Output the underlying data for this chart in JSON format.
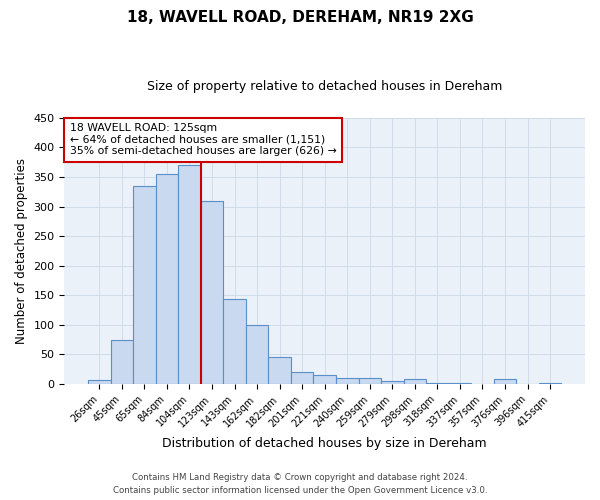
{
  "title": "18, WAVELL ROAD, DEREHAM, NR19 2XG",
  "subtitle": "Size of property relative to detached houses in Dereham",
  "xlabel": "Distribution of detached houses by size in Dereham",
  "ylabel": "Number of detached properties",
  "bar_labels": [
    "26sqm",
    "45sqm",
    "65sqm",
    "84sqm",
    "104sqm",
    "123sqm",
    "143sqm",
    "162sqm",
    "182sqm",
    "201sqm",
    "221sqm",
    "240sqm",
    "259sqm",
    "279sqm",
    "298sqm",
    "318sqm",
    "337sqm",
    "357sqm",
    "376sqm",
    "396sqm",
    "415sqm"
  ],
  "bar_values": [
    7,
    75,
    335,
    355,
    370,
    310,
    143,
    99,
    46,
    20,
    15,
    10,
    10,
    5,
    8,
    2,
    2,
    0,
    9,
    0,
    2
  ],
  "bar_color": "#c9d9f0",
  "bar_edge_color": "#5b8fc9",
  "vline_color": "#cc0000",
  "vline_index": 4.5,
  "annotation_title": "18 WAVELL ROAD: 125sqm",
  "annotation_line1": "← 64% of detached houses are smaller (1,151)",
  "annotation_line2": "35% of semi-detached houses are larger (626) →",
  "annotation_box_color": "#ffffff",
  "annotation_box_edge": "#cc0000",
  "ylim": [
    0,
    450
  ],
  "yticks": [
    0,
    50,
    100,
    150,
    200,
    250,
    300,
    350,
    400,
    450
  ],
  "grid_color": "#d0dde8",
  "background_color": "#eaf1f8",
  "footer_line1": "Contains HM Land Registry data © Crown copyright and database right 2024.",
  "footer_line2": "Contains public sector information licensed under the Open Government Licence v3.0."
}
